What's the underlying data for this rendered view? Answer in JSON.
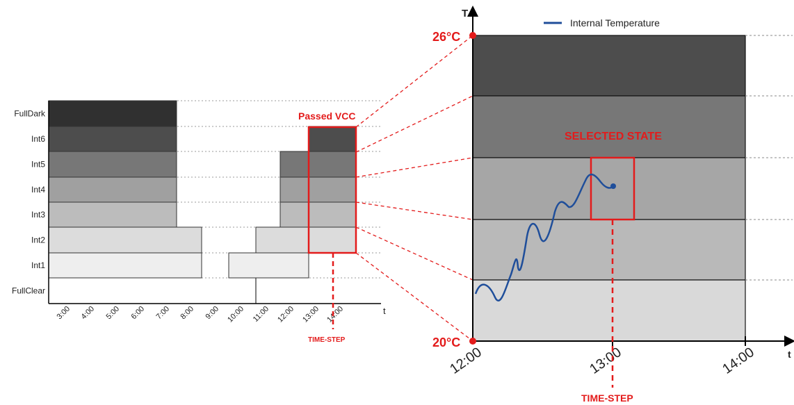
{
  "left_chart": {
    "state_labels": [
      "FullDark",
      "Int6",
      "Int5",
      "Int4",
      "Int3",
      "Int2",
      "Int1",
      "FullClear"
    ],
    "time_labels": [
      "3:00",
      "4:00",
      "5:00",
      "6:00",
      "7:00",
      "8:00",
      "9:00",
      "10:00",
      "11:00",
      "12:00",
      "13:00",
      "14:00"
    ],
    "axis_t": "t",
    "passed_vcc_label": "Passed VCC",
    "time_step_label": "TIME-STEP"
  },
  "right_chart": {
    "axis_T": "T",
    "axis_t": "t",
    "y_top_label": "26°C",
    "y_bottom_label": "20°C",
    "x_labels": [
      "12:00",
      "13:00",
      "14:00"
    ],
    "legend_label": "Internal Temperature",
    "selected_state_label": "SELECTED STATE",
    "time_step_label": "TIME-STEP"
  },
  "colors": {
    "accent": "#e31b1b",
    "series": "#1f4e9a",
    "bands": [
      "#4d4d4d",
      "#777777",
      "#a6a6a6",
      "#b9b9b9",
      "#d9d9d9"
    ]
  }
}
